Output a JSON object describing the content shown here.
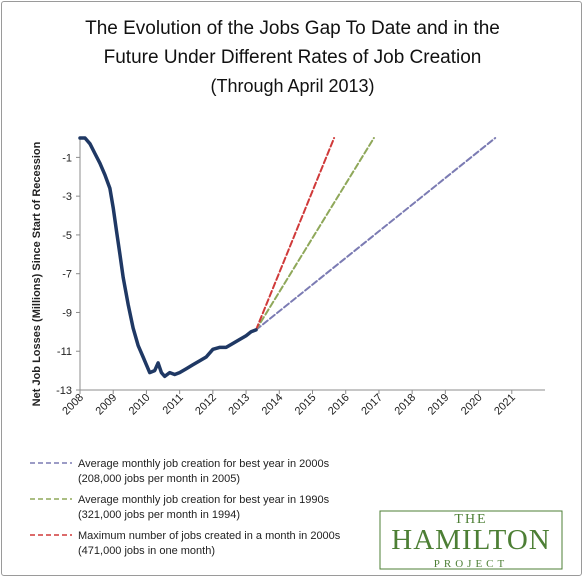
{
  "title_lines": [
    "The Evolution of the Jobs Gap To Date and in the",
    "Future Under Different Rates of Job Creation",
    "(Through April 2013)"
  ],
  "logo": {
    "line1": "THE",
    "line2": "HAMILTON",
    "line3": "PROJECT",
    "color": "#4d7f35"
  },
  "chart_data": {
    "type": "line",
    "title": "The Evolution of the Jobs Gap To Date and in the Future Under Different Rates of Job Creation",
    "subtitle": "(Through April 2013)",
    "ylabel": "Net Job Losses (Millions)  Since Start of Recession",
    "xlabel": "",
    "x_ticks": [
      "2008",
      "2009",
      "2010",
      "2011",
      "2012",
      "2013",
      "2014",
      "2015",
      "2016",
      "2017",
      "2018",
      "2019",
      "2020",
      "2021"
    ],
    "y_ticks": [
      "-1",
      "-3",
      "-5",
      "-7",
      "-9",
      "-11",
      "-13"
    ],
    "ylim": [
      -13,
      0
    ],
    "xlim": [
      2008,
      2022
    ],
    "grid": false,
    "legend_position": "bottom",
    "series": [
      {
        "key": "actual",
        "color": "#1f3864",
        "style": "solid",
        "x": [
          2008.0,
          2008.15,
          2008.3,
          2008.45,
          2008.6,
          2008.75,
          2008.9,
          2009.0,
          2009.1,
          2009.2,
          2009.3,
          2009.45,
          2009.6,
          2009.75,
          2009.9,
          2010.0,
          2010.1,
          2010.25,
          2010.35,
          2010.45,
          2010.55,
          2010.7,
          2010.85,
          2011.0,
          2011.2,
          2011.4,
          2011.6,
          2011.8,
          2012.0,
          2012.2,
          2012.4,
          2012.6,
          2012.8,
          2013.0,
          2013.15,
          2013.3
        ],
        "values": [
          0.0,
          0.0,
          -0.3,
          -0.8,
          -1.3,
          -1.9,
          -2.6,
          -3.6,
          -4.8,
          -6.0,
          -7.2,
          -8.6,
          -9.8,
          -10.7,
          -11.3,
          -11.7,
          -12.1,
          -12.0,
          -11.6,
          -12.1,
          -12.3,
          -12.1,
          -12.2,
          -12.1,
          -11.9,
          -11.7,
          -11.5,
          -11.3,
          -10.9,
          -10.8,
          -10.8,
          -10.6,
          -10.4,
          -10.2,
          -10.0,
          -9.9
        ]
      },
      {
        "name": "Average monthly job creation for best year in 2000s",
        "note": "(208,000 jobs per month in 2005)",
        "color": "#7b7bb3",
        "style": "dashed",
        "x": [
          2013.3,
          2020.5
        ],
        "values": [
          -9.9,
          0.0
        ]
      },
      {
        "name": "Average monthly job creation for best year in 1990s",
        "note": "(321,000 jobs per month in 1994)",
        "color": "#8fa85a",
        "style": "dashed",
        "x": [
          2013.3,
          2016.85
        ],
        "values": [
          -9.9,
          0.0
        ]
      },
      {
        "name": "Maximum number of jobs created in a month in 2000s",
        "note": "(471,000 jobs in one month)",
        "color": "#d03a3a",
        "style": "dashed",
        "x": [
          2013.3,
          2015.65
        ],
        "values": [
          -9.9,
          0.0
        ]
      }
    ]
  }
}
